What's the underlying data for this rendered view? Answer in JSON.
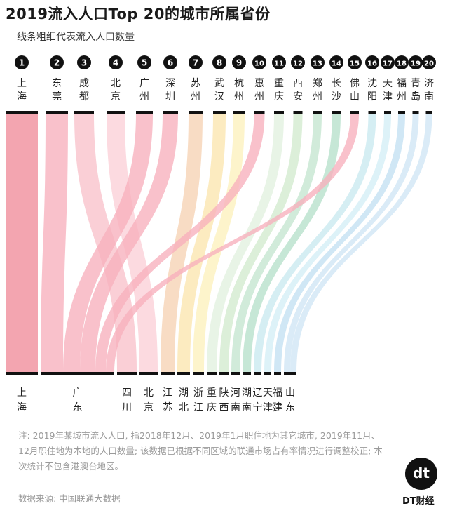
{
  "header": {
    "title": "2019流入人口Top 20的城市所属省份",
    "subtitle": "线条粗细代表流入人口数量"
  },
  "footer": {
    "note": "注: 2019年某城市流入人口, 指2018年12月、2019年1月职住地为其它城市, 2019年11月、12月职住地为本地的人口数量; 该数据已根据不同区域的联通市场占有率情况进行调整校正; 本次统计不包含港澳台地区。",
    "source": "数据来源: 中国联通大数据",
    "brand_mark": "dt",
    "brand_name": "DT财经"
  },
  "chart_data": {
    "type": "sankey",
    "title": "2019流入人口Top 20的城市所属省份",
    "subtitle": "线条粗细代表流入人口数量",
    "cities": [
      {
        "rank": "1",
        "name": "上海",
        "province": "上海"
      },
      {
        "rank": "2",
        "name": "东莞",
        "province": "广东"
      },
      {
        "rank": "3",
        "name": "成都",
        "province": "四川"
      },
      {
        "rank": "4",
        "name": "北京",
        "province": "北京"
      },
      {
        "rank": "5",
        "name": "广州",
        "province": "广东"
      },
      {
        "rank": "6",
        "name": "深圳",
        "province": "广东"
      },
      {
        "rank": "7",
        "name": "苏州",
        "province": "江苏"
      },
      {
        "rank": "8",
        "name": "武汉",
        "province": "湖北"
      },
      {
        "rank": "9",
        "name": "杭州",
        "province": "浙江"
      },
      {
        "rank": "10",
        "name": "惠州",
        "province": "广东"
      },
      {
        "rank": "11",
        "name": "重庆",
        "province": "重庆"
      },
      {
        "rank": "12",
        "name": "西安",
        "province": "陕西"
      },
      {
        "rank": "13",
        "name": "郑州",
        "province": "河南"
      },
      {
        "rank": "14",
        "name": "长沙",
        "province": "湖南"
      },
      {
        "rank": "15",
        "name": "佛山",
        "province": "广东"
      },
      {
        "rank": "16",
        "name": "沈阳",
        "province": "辽宁"
      },
      {
        "rank": "17",
        "name": "天津",
        "province": "天津"
      },
      {
        "rank": "18",
        "name": "福州",
        "province": "福建"
      },
      {
        "rank": "19",
        "name": "青岛",
        "province": "山东"
      },
      {
        "rank": "20",
        "name": "济南",
        "province": "山东"
      }
    ],
    "provinces": [
      "上海",
      "广东",
      "四川",
      "北京",
      "江苏",
      "湖北",
      "浙江",
      "重庆",
      "陕西",
      "河南",
      "湖南",
      "辽宁",
      "天津",
      "福建",
      "山东"
    ],
    "province_colors": {
      "上海": "#f08c9a",
      "广东": "#f7b0bc",
      "四川": "#f9c2cb",
      "北京": "#fbd0d7",
      "江苏": "#f6d2b4",
      "湖北": "#fbe6ae",
      "浙江": "#fcf1bd",
      "重庆": "#e2f1df",
      "陕西": "#d2ebce",
      "河南": "#c4e6cf",
      "湖南": "#b6e0cb",
      "辽宁": "#c9e9ef",
      "天津": "#d4eef6",
      "福建": "#c3e0f2",
      "山东": "#cfe5f5"
    }
  }
}
